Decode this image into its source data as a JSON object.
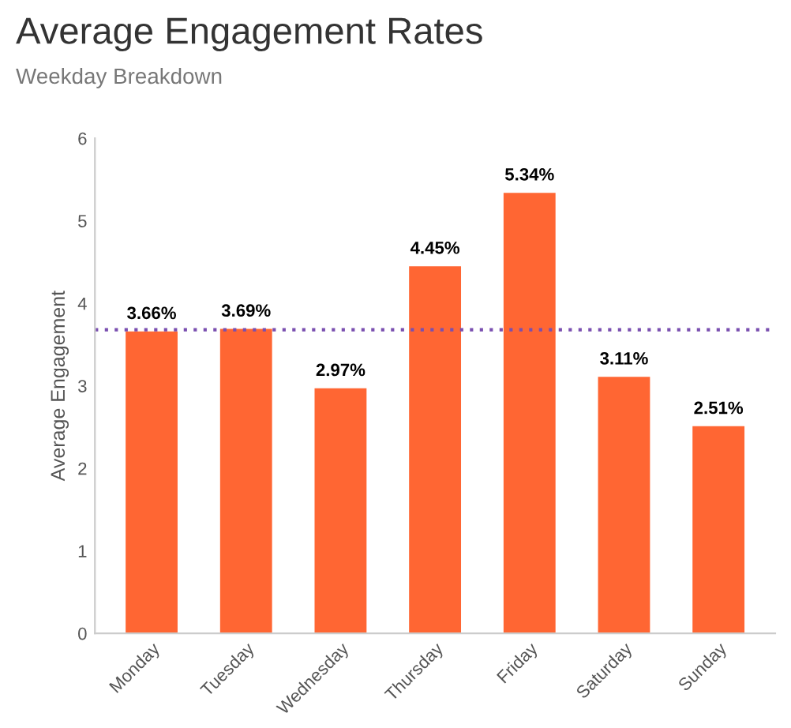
{
  "chart_data": {
    "type": "bar",
    "title": "Average Engagement Rates",
    "subtitle": "Weekday Breakdown",
    "ylabel": "Average Engagement",
    "categories": [
      "Monday",
      "Tuesday",
      "Wednesday",
      "Thursday",
      "Friday",
      "Saturday",
      "Sunday"
    ],
    "values": [
      3.66,
      3.69,
      2.97,
      4.45,
      5.34,
      3.11,
      2.51
    ],
    "value_labels": [
      "3.66%",
      "3.69%",
      "2.97%",
      "4.45%",
      "5.34%",
      "3.11%",
      "2.51%"
    ],
    "color": "#ff6633",
    "ylim": [
      0,
      6
    ],
    "yticks": [
      0,
      1,
      2,
      3,
      4,
      5,
      6
    ],
    "grid": false,
    "ref_lines": [
      {
        "axis": "y",
        "value": 3.68,
        "color": "#7a4fb0",
        "line_style": "dotted"
      }
    ]
  }
}
